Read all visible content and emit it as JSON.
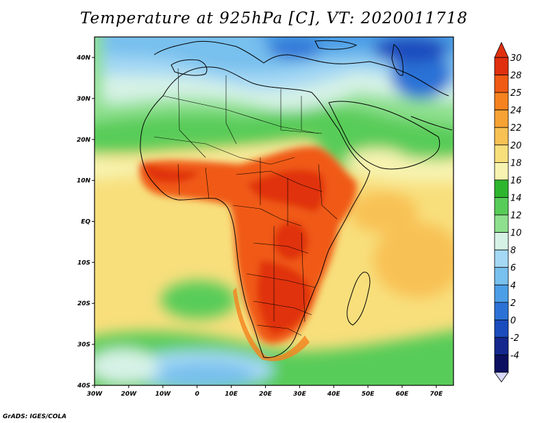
{
  "title": "Temperature at 925hPa [C], VT: 2020011718",
  "credit": "GrADS: IGES/COLA",
  "axes": {
    "x_ticks": [
      "30W",
      "20W",
      "10W",
      "0",
      "10E",
      "20E",
      "30E",
      "40E",
      "50E",
      "60E",
      "70E"
    ],
    "y_ticks": [
      "40N",
      "30N",
      "20N",
      "10N",
      "EQ",
      "10S",
      "20S",
      "30S",
      "40S"
    ]
  },
  "colorbar": {
    "labels": [
      "30",
      "28",
      "25",
      "24",
      "22",
      "20",
      "18",
      "16",
      "14",
      "12",
      "10",
      "8",
      "6",
      "4",
      "2",
      "0",
      "-2",
      "-4"
    ],
    "colors": [
      "#e03010",
      "#f05a14",
      "#f5821e",
      "#f7a234",
      "#f8c154",
      "#f8df7c",
      "#f7f3b0",
      "#2eb52e",
      "#58cc58",
      "#8ee08e",
      "#d6f2e6",
      "#a4d8f4",
      "#78c0ee",
      "#4c9ee6",
      "#2c72d6",
      "#1a4cbe",
      "#14288e",
      "#0c1060",
      "#d8d8f8"
    ]
  },
  "map": {
    "variable": "Temperature at 925hPa",
    "units": "C",
    "valid_time": "2020011718",
    "domain": {
      "lon": [
        -30,
        75
      ],
      "lat": [
        -40,
        45
      ]
    }
  }
}
